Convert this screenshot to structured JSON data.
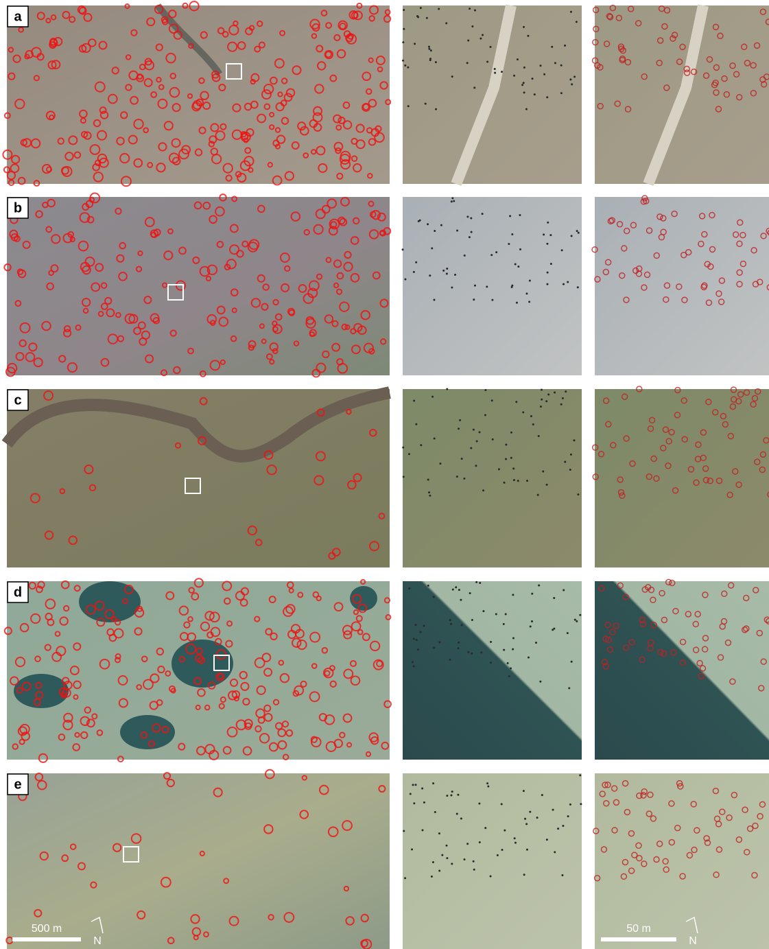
{
  "panels": [
    {
      "label": "a"
    },
    {
      "label": "b"
    },
    {
      "label": "c"
    },
    {
      "label": "d"
    },
    {
      "label": "e"
    }
  ],
  "scale_bars": [
    {
      "label": "500 m",
      "north": "N"
    },
    {
      "label": "50 m",
      "north": "N"
    }
  ]
}
